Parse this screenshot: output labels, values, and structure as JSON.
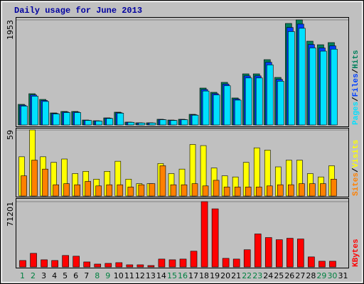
{
  "chart_data": {
    "type": "bar",
    "title": "Daily usage for June 2013",
    "title_color": "#0000a0",
    "categories": [
      "1",
      "2",
      "3",
      "4",
      "5",
      "6",
      "7",
      "8",
      "9",
      "10",
      "11",
      "12",
      "13",
      "14",
      "15",
      "16",
      "17",
      "18",
      "19",
      "20",
      "21",
      "22",
      "23",
      "24",
      "25",
      "26",
      "27",
      "28",
      "29",
      "30",
      "31"
    ],
    "weekend": [
      0,
      1,
      7,
      8,
      14,
      15,
      21,
      22,
      28,
      29
    ],
    "weekend_color": "#008040",
    "legend_separator": "/",
    "panels": [
      {
        "ylim": [
          0,
          1953
        ],
        "yticks": [
          1953
        ],
        "series": [
          {
            "name": "Hits",
            "color": "#00805c",
            "values": [
              383,
              581,
              475,
              224,
              251,
              251,
              92,
              79,
              132,
              238,
              53,
              40,
              40,
              106,
              92,
              106,
              198,
              686,
              607,
              792,
              502,
              950,
              950,
              1214,
              884,
              1887,
              1953,
              1557,
              1491,
              1531,
              null
            ]
          },
          {
            "name": "Files",
            "color": "#0040ff",
            "values": [
              368,
              558,
              456,
              215,
              241,
              241,
              88,
              76,
              127,
              228,
              51,
              38,
              38,
              102,
              88,
              102,
              190,
              659,
              583,
              760,
              482,
              912,
              912,
              1165,
              849,
              1812,
              1875,
              1495,
              1431,
              1470,
              null
            ]
          },
          {
            "name": "Pages",
            "color": "#00e0ff",
            "values": [
              352,
              535,
              437,
              206,
              231,
              231,
              85,
              73,
              121,
              219,
              49,
              37,
              37,
              98,
              85,
              98,
              182,
              631,
              558,
              729,
              462,
              874,
              874,
              1117,
              813,
              1736,
              1797,
              1432,
              1372,
              1409,
              null
            ]
          }
        ]
      },
      {
        "ylim": [
          0,
          59
        ],
        "yticks": [
          59
        ],
        "series": [
          {
            "name": "Visits",
            "color": "#ffff00",
            "values": [
              35,
              59,
              35,
              30,
              33,
              20,
              22,
              15,
              22,
              31,
              15,
              11,
              11,
              29,
              20,
              24,
              46,
              45,
              25,
              18,
              17,
              30,
              43,
              41,
              26,
              32,
              32,
              20,
              17,
              27,
              null
            ]
          },
          {
            "name": "Sites",
            "color": "#ff8000",
            "values": [
              18,
              32,
              24,
              10,
              11,
              10,
              13,
              9,
              10,
              10,
              8,
              10,
              11,
              27,
              10,
              10,
              11,
              9,
              14,
              8,
              8,
              8,
              8,
              9,
              10,
              10,
              11,
              11,
              11,
              15,
              null
            ]
          }
        ]
      },
      {
        "ylim": [
          0,
          71201
        ],
        "yticks": [
          71201
        ],
        "series": [
          {
            "name": "KBytes",
            "color": "#ff0000",
            "values": [
              7042,
              14866,
              7824,
              7042,
              12519,
              11736,
              5477,
              3130,
              3912,
              4695,
              2347,
              2347,
              1565,
              8607,
              7824,
              8607,
              17213,
              71201,
              63376,
              9389,
              8607,
              18778,
              35992,
              32080,
              29732,
              31297,
              30515,
              10954,
              6259,
              6259,
              null
            ]
          }
        ]
      }
    ]
  }
}
